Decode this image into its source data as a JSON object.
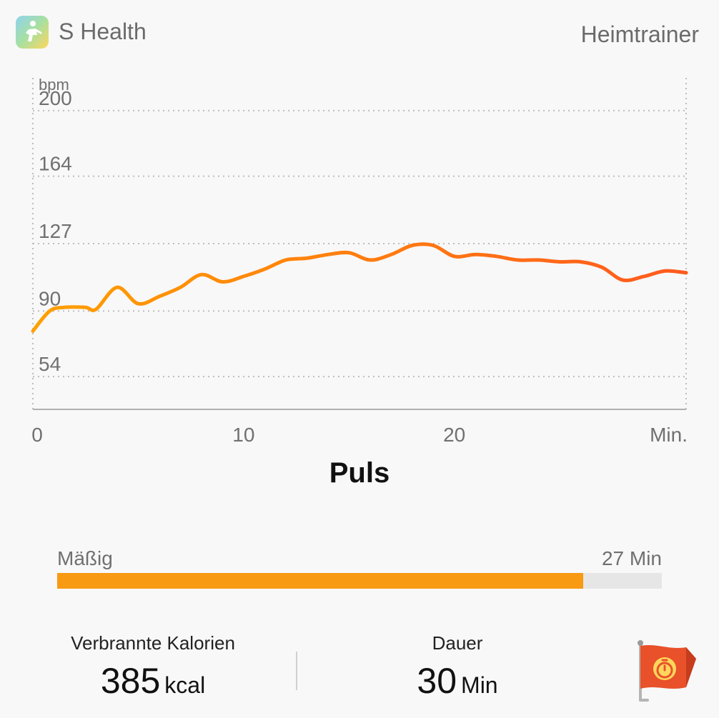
{
  "header": {
    "app_name": "S Health",
    "workout_type": "Heimtrainer",
    "app_icon": "s-health-runner-icon"
  },
  "chart_data": {
    "type": "line",
    "title": "Puls",
    "y_unit_label": "bpm",
    "x_unit_label": "Min.",
    "y_ticks": [
      200,
      164,
      127,
      90,
      54
    ],
    "x_ticks": [
      "0",
      "10",
      "20"
    ],
    "xlim": [
      0,
      31
    ],
    "ylim": [
      36,
      218
    ],
    "grid": true,
    "line_color_start": "#ffa000",
    "line_color_end": "#ff5a1e",
    "series": [
      {
        "x": [
          0,
          0.8,
          1.5,
          2.5,
          3,
          4,
          5,
          6,
          7,
          8,
          9,
          10,
          11,
          12,
          13,
          14,
          15,
          16,
          17,
          18,
          19,
          20,
          21,
          22,
          23,
          24,
          25,
          26,
          27,
          28,
          29,
          30,
          31
        ],
        "y": [
          79,
          90,
          92,
          92,
          91,
          103,
          94,
          98,
          103,
          110,
          106,
          109,
          113,
          118,
          119,
          121,
          122,
          118,
          121,
          126,
          126,
          120,
          121,
          120,
          118,
          118,
          117,
          117,
          114,
          107,
          109,
          112,
          111
        ]
      }
    ]
  },
  "zone": {
    "label": "Mäßig",
    "value_label": "27 Min",
    "fraction": 0.87,
    "color": "#f89a12"
  },
  "stats": {
    "calories": {
      "label": "Verbrannte Kalorien",
      "value": "385",
      "unit": "kcal"
    },
    "duration": {
      "label": "Dauer",
      "value": "30",
      "unit": "Min"
    }
  },
  "achievement_icon": "stopwatch-flag-icon"
}
